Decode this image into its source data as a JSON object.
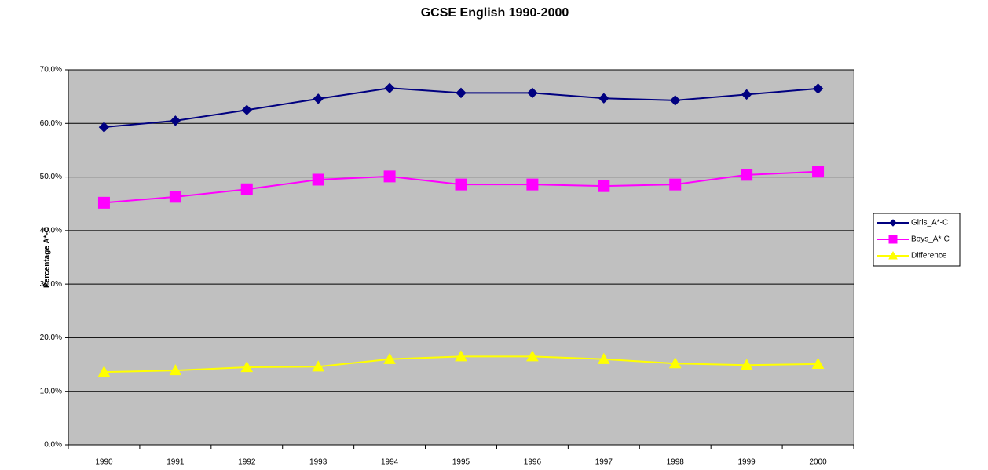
{
  "chart_data": {
    "type": "line",
    "title": "GCSE English 1990-2000",
    "y_label": "Percentage A*-C",
    "categories": [
      "1990",
      "1991",
      "1992",
      "1993",
      "1994",
      "1995",
      "1996",
      "1997",
      "1998",
      "1999",
      "2000"
    ],
    "series": [
      {
        "name": "Girls_A*-C",
        "color": "#000080",
        "marker": "diamond",
        "values": [
          59.3,
          60.5,
          62.5,
          64.6,
          66.6,
          65.7,
          65.7,
          64.7,
          64.3,
          65.4,
          66.5
        ]
      },
      {
        "name": "Boys_A*-C",
        "color": "#ff00ff",
        "marker": "square",
        "values": [
          45.2,
          46.3,
          47.7,
          49.5,
          50.1,
          48.6,
          48.6,
          48.3,
          48.6,
          50.4,
          51.0
        ]
      },
      {
        "name": "Difference",
        "color": "#ffff00",
        "marker": "triangle",
        "values": [
          13.6,
          13.9,
          14.5,
          14.6,
          16.0,
          16.5,
          16.5,
          16.0,
          15.2,
          14.9,
          15.1
        ]
      }
    ],
    "ylim": [
      0,
      70
    ],
    "yticks": [
      {
        "value": 0,
        "label": "0.0%"
      },
      {
        "value": 10,
        "label": "10.0%"
      },
      {
        "value": 20,
        "label": "20.0%"
      },
      {
        "value": 30,
        "label": "30.0%"
      },
      {
        "value": 40,
        "label": "40.0%"
      },
      {
        "value": 50,
        "label": "50.0%"
      },
      {
        "value": 60,
        "label": "60.0%"
      },
      {
        "value": 70,
        "label": "70.0%"
      }
    ],
    "grid": true,
    "plot_background": "#c0c0c0",
    "legend": "right"
  }
}
